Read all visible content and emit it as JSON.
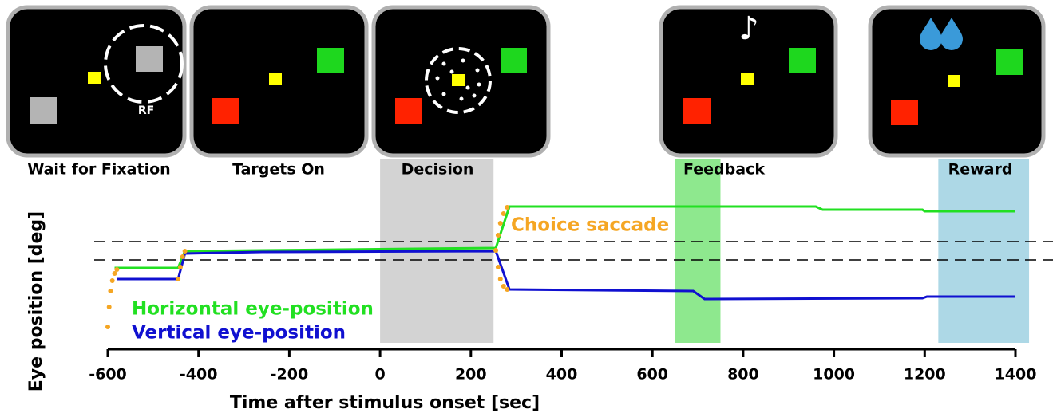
{
  "panels": [
    {
      "label": "Wait for Fixation",
      "rf": "RF"
    },
    {
      "label": "Targets On"
    },
    {
      "label": "Decision"
    },
    {
      "label": "Feedback",
      "symbol": "♪"
    },
    {
      "label": "Reward"
    }
  ],
  "chart_data": {
    "type": "line",
    "xlabel": "Time after stimulus onset [sec]",
    "ylabel": "Eye position [deg]",
    "xlim": [
      -600,
      1400
    ],
    "xticks": [
      -600,
      -400,
      -200,
      0,
      200,
      400,
      600,
      800,
      1000,
      1200,
      1400
    ],
    "ylim": [
      -10,
      10
    ],
    "regions": [
      {
        "start": 0,
        "end": 250,
        "color": "#d3d3d3"
      },
      {
        "start": 650,
        "end": 750,
        "color": "#8ee88e"
      },
      {
        "start": 1230,
        "end": 1430,
        "color": "#add8e6"
      }
    ],
    "series": [
      {
        "name": "Horizontal eye-position",
        "color": "#22e022",
        "x": [
          -585,
          -445,
          -430,
          -260,
          255,
          285,
          960,
          975,
          1195,
          1200,
          1400
        ],
        "values": [
          -0.6,
          -0.6,
          1.5,
          1.6,
          1.9,
          7.1,
          7.1,
          6.7,
          6.7,
          6.5,
          6.5
        ]
      },
      {
        "name": "Vertical eye-position",
        "color": "#1010d0",
        "x": [
          -580,
          -445,
          -430,
          -260,
          255,
          285,
          690,
          715,
          1195,
          1205,
          1400
        ],
        "values": [
          -2.0,
          -2.0,
          1.2,
          1.4,
          1.5,
          -3.3,
          -3.5,
          -4.5,
          -4.4,
          -4.2,
          -4.2
        ]
      },
      {
        "name": "Choice saccade",
        "color": "#f5a623",
        "x": [
          -600,
          -597,
          -594,
          -590,
          -585,
          -580,
          -500,
          -445,
          -440,
          -435,
          -430,
          0,
          255,
          260,
          265,
          272,
          280,
          0,
          255,
          260,
          265,
          272,
          280
        ],
        "values": [
          -8.0,
          -5.5,
          -3.5,
          -2.2,
          -1.3,
          -0.8,
          null,
          -2.0,
          -0.5,
          0.8,
          1.5,
          null,
          1.6,
          3.5,
          5.0,
          6.2,
          7.0,
          null,
          1.6,
          -0.5,
          -2.0,
          -2.9,
          -3.3
        ]
      }
    ]
  }
}
